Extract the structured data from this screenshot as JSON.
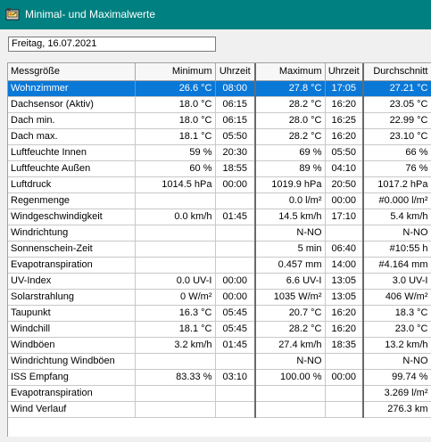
{
  "window": {
    "title": "Minimal- und Maximalwerte",
    "icon": "weather-station-icon"
  },
  "date_field": {
    "value": "Freitag, 16.07.2021"
  },
  "table": {
    "headers": [
      "Messgröße",
      "Minimum",
      "Uhrzeit",
      "Maximum",
      "Uhrzeit",
      "Durchschnitt"
    ],
    "selected_row": 0,
    "rows": [
      [
        "Wohnzimmer",
        "26.6 °C",
        "08:00",
        "27.8 °C",
        "17:05",
        "27.21 °C"
      ],
      [
        "Dachsensor (Aktiv)",
        "18.0 °C",
        "06:15",
        "28.2 °C",
        "16:20",
        "23.05 °C"
      ],
      [
        "Dach min.",
        "18.0 °C",
        "06:15",
        "28.0 °C",
        "16:25",
        "22.99 °C"
      ],
      [
        "Dach max.",
        "18.1 °C",
        "05:50",
        "28.2 °C",
        "16:20",
        "23.10 °C"
      ],
      [
        "Luftfeuchte Innen",
        "59 %",
        "20:30",
        "69 %",
        "05:50",
        "66 %"
      ],
      [
        "Luftfeuchte Außen",
        "60 %",
        "18:55",
        "89 %",
        "04:10",
        "76 %"
      ],
      [
        "Luftdruck",
        "1014.5 hPa",
        "00:00",
        "1019.9 hPa",
        "20:50",
        "1017.2 hPa"
      ],
      [
        "Regenmenge",
        "",
        "",
        "0.0 l/m²",
        "00:00",
        "#0.000 l/m²"
      ],
      [
        "Windgeschwindigkeit",
        "0.0 km/h",
        "01:45",
        "14.5 km/h",
        "17:10",
        "5.4 km/h"
      ],
      [
        "Windrichtung",
        "",
        "",
        "N-NO",
        "",
        "N-NO"
      ],
      [
        "Sonnenschein-Zeit",
        "",
        "",
        "5 min",
        "06:40",
        "#10:55 h"
      ],
      [
        "Evapotranspiration",
        "",
        "",
        "0.457 mm",
        "14:00",
        "#4.164 mm"
      ],
      [
        "UV-Index",
        "0.0 UV-I",
        "00:00",
        "6.6 UV-I",
        "13:05",
        "3.0 UV-I"
      ],
      [
        "Solarstrahlung",
        "0 W/m²",
        "00:00",
        "1035 W/m²",
        "13:05",
        "406 W/m²"
      ],
      [
        "Taupunkt",
        "16.3 °C",
        "05:45",
        "20.7 °C",
        "16:20",
        "18.3 °C"
      ],
      [
        "Windchill",
        "18.1 °C",
        "05:45",
        "28.2 °C",
        "16:20",
        "23.0 °C"
      ],
      [
        "Windböen",
        "3.2 km/h",
        "01:45",
        "27.4 km/h",
        "18:35",
        "13.2 km/h"
      ],
      [
        "Windrichtung Windböen",
        "",
        "",
        "N-NO",
        "",
        "N-NO"
      ],
      [
        "ISS Empfang",
        "83.33 %",
        "03:10",
        "100.00 %",
        "00:00",
        "99.74 %"
      ],
      [
        "Evapotranspiration",
        "",
        "",
        "",
        "",
        "3.269 l/m²"
      ],
      [
        "Wind Verlauf",
        "",
        "",
        "",
        "",
        "276.3 km"
      ]
    ]
  }
}
